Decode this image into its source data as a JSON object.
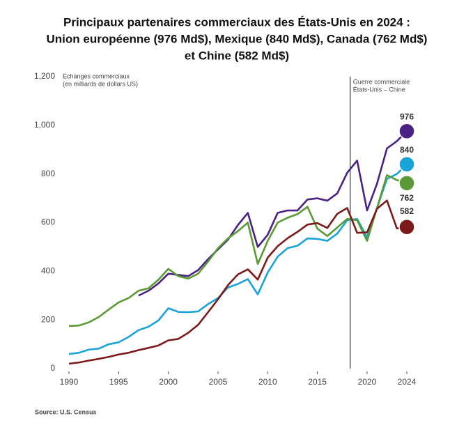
{
  "chart_data": {
    "type": "line",
    "title": [
      "Principaux partenaires commerciaux des États-Unis en 2024 :",
      "Union européenne (976 Md$), Mexique (840 Md$), Canada (762 Md$)",
      "et Chine (582 Md$)"
    ],
    "y_label": [
      "Échanges commerciaux",
      "(en milliards de dollars US)"
    ],
    "annotation": {
      "x": 2018.3,
      "text": [
        "Guerre commerciale",
        "États-Unis – Chine"
      ]
    },
    "source": "Source: U.S. Census",
    "x": [
      1990,
      1991,
      1992,
      1993,
      1994,
      1995,
      1996,
      1997,
      1998,
      1999,
      2000,
      2001,
      2002,
      2003,
      2004,
      2005,
      2006,
      2007,
      2008,
      2009,
      2010,
      2011,
      2012,
      2013,
      2014,
      2015,
      2016,
      2017,
      2018,
      2019,
      2020,
      2021,
      2022,
      2023,
      2024
    ],
    "xlim": [
      1990,
      2024
    ],
    "xticks": [
      1990,
      1995,
      2000,
      2005,
      2010,
      2015,
      2020,
      2024
    ],
    "ylim": [
      0,
      1200
    ],
    "yticks": [
      0,
      200,
      400,
      600,
      800,
      {
        "value": 1000,
        "label": "1,000"
      },
      {
        "value": 1200,
        "label": "1,200"
      }
    ],
    "grid": false,
    "series": [
      {
        "name": "Union européenne",
        "color": "#4b2283",
        "values": [
          null,
          null,
          null,
          null,
          null,
          null,
          null,
          300,
          320,
          350,
          390,
          385,
          380,
          405,
          450,
          490,
          530,
          590,
          640,
          500,
          550,
          640,
          650,
          650,
          695,
          700,
          690,
          720,
          805,
          855,
          650,
          760,
          905,
          935,
          976
        ]
      },
      {
        "name": "Mexique",
        "color": "#1aa3d8",
        "values": [
          60,
          65,
          78,
          82,
          100,
          108,
          130,
          158,
          172,
          198,
          248,
          233,
          232,
          235,
          265,
          290,
          333,
          348,
          368,
          305,
          395,
          460,
          495,
          505,
          535,
          533,
          525,
          555,
          610,
          615,
          540,
          660,
          780,
          800,
          840
        ]
      },
      {
        "name": "Canada",
        "color": "#5a9a36",
        "values": [
          175,
          177,
          190,
          212,
          243,
          272,
          290,
          320,
          330,
          365,
          410,
          380,
          370,
          390,
          440,
          495,
          535,
          565,
          600,
          430,
          525,
          600,
          620,
          635,
          665,
          575,
          545,
          580,
          615,
          610,
          525,
          660,
          795,
          775,
          762
        ]
      },
      {
        "name": "Chine",
        "color": "#7a1a1a",
        "values": [
          20,
          25,
          33,
          40,
          48,
          58,
          65,
          76,
          85,
          95,
          116,
          122,
          147,
          180,
          232,
          285,
          343,
          387,
          408,
          366,
          456,
          503,
          536,
          562,
          592,
          598,
          578,
          636,
          660,
          558,
          560,
          657,
          691,
          576,
          582
        ]
      }
    ]
  }
}
